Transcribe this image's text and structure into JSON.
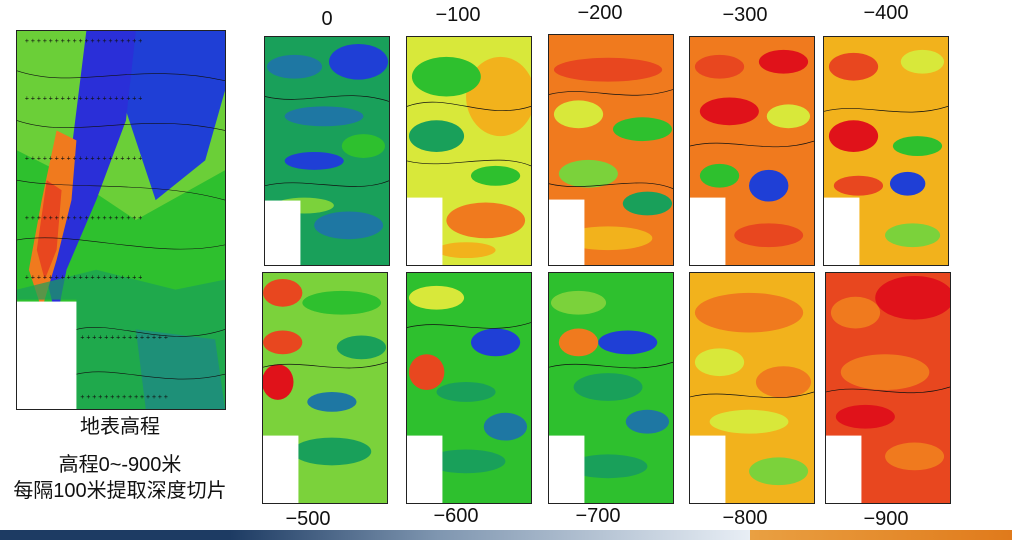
{
  "captions": {
    "main_title": "地表高程",
    "elevation_range": "高程0~-900米",
    "interval_note": "每隔100米提取深度切片"
  },
  "slices": {
    "top": [
      "0",
      "−100",
      "−200",
      "−300",
      "−400"
    ],
    "bottom": [
      "−500",
      "−600",
      "−700",
      "−800",
      "−900"
    ]
  },
  "palette": [
    "#1f3fd6",
    "#1e77a3",
    "#19a05a",
    "#2ec02e",
    "#7bd23b",
    "#d8e83a",
    "#f2b21c",
    "#f07a1e",
    "#e8471f",
    "#e0121a"
  ],
  "slice_dominant_color": {
    "0": "#1e77a3",
    "-100": "#7bd23b",
    "-200": "#f07a1e",
    "-300": "#e8471f",
    "-400": "#f07a1e",
    "-500": "#7bd23b",
    "-600": "#2ec02e",
    "-700": "#2ec02e",
    "-800": "#f2b21c",
    "-900": "#e8471f"
  }
}
